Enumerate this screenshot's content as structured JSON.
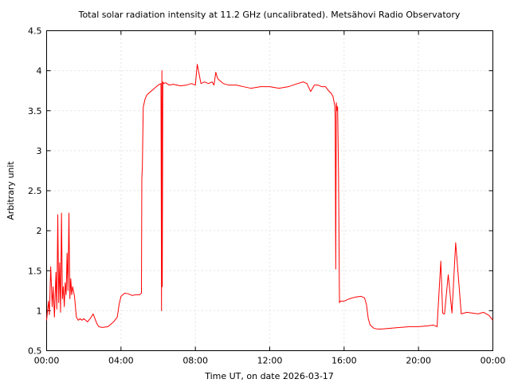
{
  "chart_data": {
    "type": "line",
    "title": "Total solar radiation intensity at 11.2 GHz (uncalibrated). Metsähovi Radio Observatory",
    "xlabel": "Time UT, on date 2026-03-17",
    "ylabel": "Arbitrary unit",
    "xlim": [
      0,
      24
    ],
    "ylim": [
      0.5,
      4.5
    ],
    "grid": true,
    "x_ticks": [
      0,
      4,
      8,
      12,
      16,
      20,
      24
    ],
    "x_tick_labels": [
      "00:00",
      "04:00",
      "08:00",
      "12:00",
      "16:00",
      "20:00",
      "00:00"
    ],
    "y_ticks": [
      0.5,
      1,
      1.5,
      2,
      2.5,
      3,
      3.5,
      4,
      4.5
    ],
    "y_tick_labels": [
      "0.5",
      "1",
      "1.5",
      "2",
      "2.5",
      "3",
      "3.5",
      "4",
      "4.5"
    ],
    "series": [
      {
        "color": "#ff0000",
        "x": [
          0.0,
          0.1,
          0.15,
          0.22,
          0.3,
          0.35,
          0.42,
          0.5,
          0.55,
          0.6,
          0.65,
          0.7,
          0.75,
          0.8,
          0.85,
          0.9,
          0.95,
          1.0,
          1.05,
          1.1,
          1.15,
          1.2,
          1.25,
          1.3,
          1.35,
          1.4,
          1.5,
          1.6,
          1.7,
          1.8,
          1.9,
          2.0,
          2.2,
          2.4,
          2.5,
          2.6,
          2.7,
          2.8,
          3.0,
          3.3,
          3.6,
          3.8,
          3.9,
          4.0,
          4.1,
          4.2,
          4.4,
          4.6,
          4.8,
          5.0,
          5.1,
          5.12,
          5.15,
          5.18,
          5.2,
          5.3,
          5.4,
          5.6,
          5.8,
          6.0,
          6.15,
          6.18,
          6.2,
          6.22,
          6.25,
          6.3,
          6.4,
          6.6,
          6.8,
          7.0,
          7.2,
          7.5,
          7.8,
          8.0,
          8.1,
          8.3,
          8.5,
          8.7,
          8.9,
          9.0,
          9.1,
          9.2,
          9.3,
          9.5,
          9.8,
          10.2,
          10.6,
          11.0,
          11.5,
          12.0,
          12.5,
          13.0,
          13.5,
          13.8,
          14.0,
          14.2,
          14.4,
          14.6,
          14.8,
          15.0,
          15.2,
          15.3,
          15.4,
          15.45,
          15.5,
          15.52,
          15.55,
          15.58,
          15.6,
          15.62,
          15.65,
          15.7,
          15.75,
          15.8,
          16.0,
          16.3,
          16.6,
          16.9,
          17.1,
          17.2,
          17.3,
          17.4,
          17.6,
          17.8,
          18.0,
          18.5,
          19.0,
          19.5,
          20.0,
          20.5,
          20.8,
          21.0,
          21.2,
          21.3,
          21.35,
          21.4,
          21.6,
          21.8,
          22.0,
          22.3,
          22.6,
          22.9,
          23.2,
          23.5,
          23.8,
          24.0
        ],
        "y": [
          0.88,
          1.12,
          0.95,
          1.55,
          1.05,
          1.3,
          0.92,
          1.48,
          1.02,
          2.2,
          1.1,
          1.6,
          0.98,
          2.22,
          1.15,
          1.3,
          1.05,
          1.35,
          1.2,
          1.72,
          1.25,
          2.22,
          1.15,
          1.4,
          1.2,
          1.3,
          1.18,
          0.92,
          0.88,
          0.9,
          0.88,
          0.9,
          0.86,
          0.92,
          0.96,
          0.9,
          0.84,
          0.8,
          0.79,
          0.8,
          0.86,
          0.92,
          1.08,
          1.18,
          1.2,
          1.22,
          1.21,
          1.19,
          1.2,
          1.2,
          1.22,
          2.65,
          2.8,
          3.3,
          3.55,
          3.65,
          3.7,
          3.74,
          3.78,
          3.82,
          3.84,
          1.0,
          4.0,
          1.3,
          3.86,
          3.84,
          3.85,
          3.82,
          3.83,
          3.82,
          3.81,
          3.82,
          3.84,
          3.82,
          4.08,
          3.84,
          3.86,
          3.84,
          3.86,
          3.82,
          3.98,
          3.9,
          3.88,
          3.84,
          3.82,
          3.82,
          3.8,
          3.78,
          3.8,
          3.8,
          3.78,
          3.8,
          3.84,
          3.86,
          3.84,
          3.74,
          3.82,
          3.82,
          3.8,
          3.8,
          3.74,
          3.72,
          3.68,
          3.62,
          3.56,
          3.4,
          1.52,
          3.6,
          3.55,
          3.5,
          3.55,
          2.7,
          1.1,
          1.12,
          1.12,
          1.15,
          1.17,
          1.18,
          1.16,
          1.08,
          0.9,
          0.82,
          0.78,
          0.77,
          0.77,
          0.78,
          0.79,
          0.8,
          0.8,
          0.81,
          0.82,
          0.8,
          1.62,
          0.97,
          0.96,
          0.96,
          1.45,
          0.97,
          1.85,
          0.96,
          0.98,
          0.97,
          0.96,
          0.98,
          0.94,
          0.88
        ]
      }
    ]
  }
}
